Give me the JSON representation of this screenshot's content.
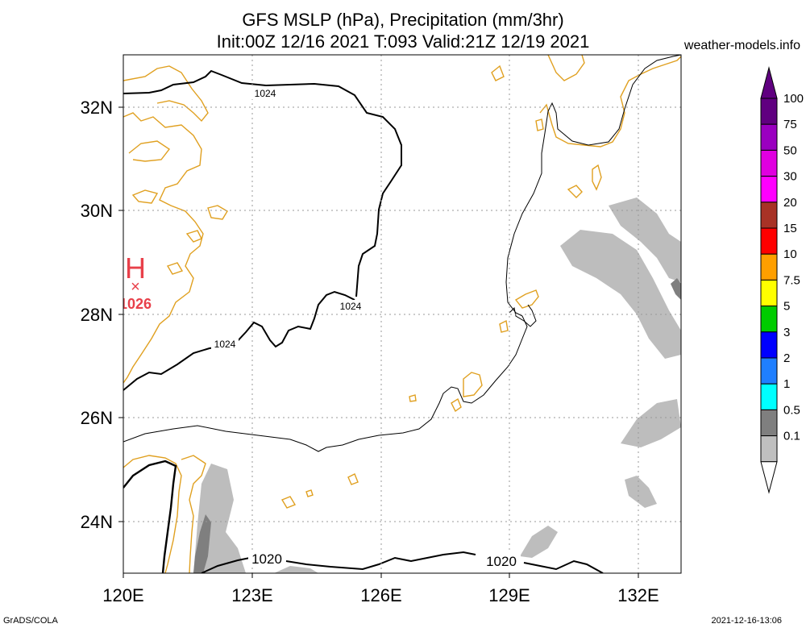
{
  "header": {
    "title_line1": "GFS MSLP (hPa), Precipitation (mm/3hr)",
    "title_line2": "Init:00Z 12/16 2021 T:093 Valid:21Z 12/19 2021",
    "site": "weather-models.info"
  },
  "footer": {
    "left": "GrADS/COLA",
    "right": "2021-12-16-13:06"
  },
  "map": {
    "lon_ticks": [
      "120E",
      "123E",
      "126E",
      "129E",
      "132E"
    ],
    "lat_ticks": [
      "32N",
      "30N",
      "28N",
      "26N",
      "24N"
    ],
    "high_center": {
      "symbol": "H",
      "marker": "×",
      "value": "1026",
      "color": "#e8404a"
    },
    "isobar_labels": [
      "1024",
      "1024",
      "1024",
      "1020",
      "1020"
    ],
    "coast_color": "#e0a020",
    "precip_light_color": "#bdbdbd",
    "precip_mid_color": "#808080"
  },
  "legend": {
    "items": [
      {
        "label": "100",
        "color": "#600080"
      },
      {
        "label": "75",
        "color": "#9a00c0"
      },
      {
        "label": "50",
        "color": "#e000e0"
      },
      {
        "label": "30",
        "color": "#ff00ff"
      },
      {
        "label": "20",
        "color": "#a83226"
      },
      {
        "label": "15",
        "color": "#ff0000"
      },
      {
        "label": "10",
        "color": "#ff9f00"
      },
      {
        "label": "7.5",
        "color": "#ffff00"
      },
      {
        "label": "5",
        "color": "#00cc00"
      },
      {
        "label": "3",
        "color": "#0000ff"
      },
      {
        "label": "2",
        "color": "#1f7fff"
      },
      {
        "label": "1",
        "color": "#00ffff"
      },
      {
        "label": "0.5",
        "color": "#7f7f7f"
      },
      {
        "label": "0.1",
        "color": "#bfbfbf"
      }
    ]
  }
}
